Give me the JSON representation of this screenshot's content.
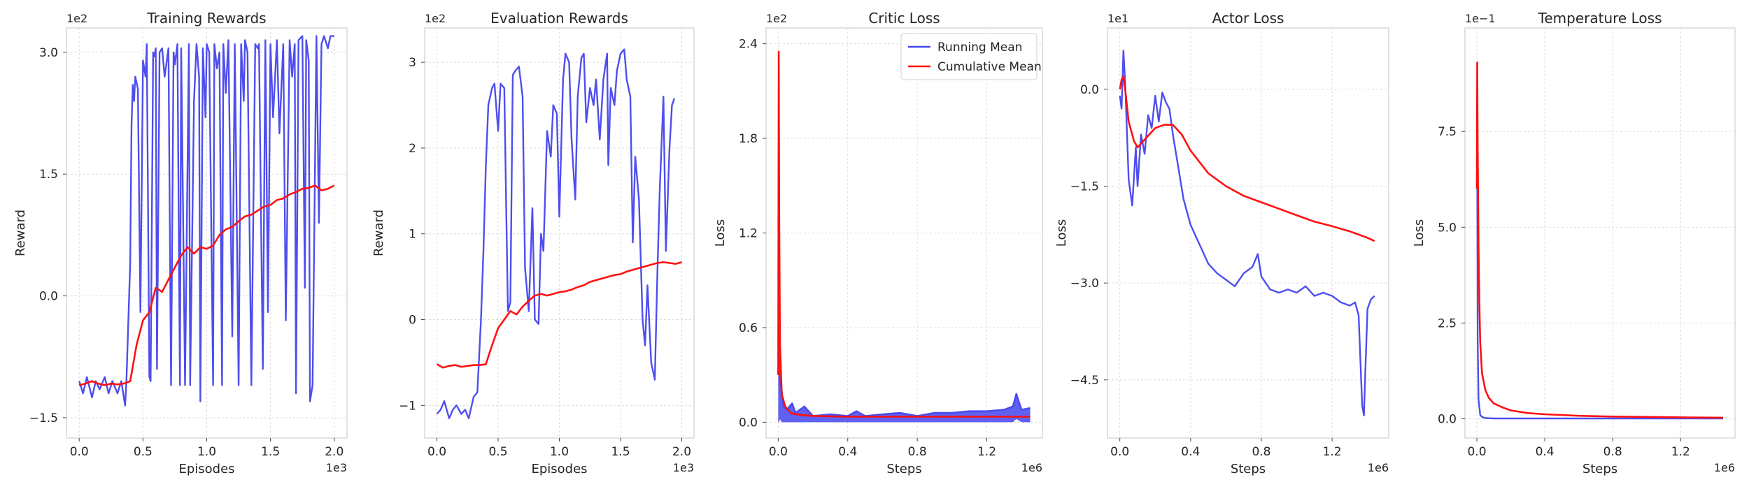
{
  "colors": {
    "running": "#4444ee",
    "cumulative": "#ff1010",
    "grid": "#dcdcdc",
    "spine": "#cfcfcf"
  },
  "chart_data": [
    {
      "type": "line",
      "title": "Training Rewards",
      "xlabel": "Episodes",
      "ylabel": "Reward",
      "x_offset_text": "1e3",
      "y_offset_text": "1e2",
      "xlim": [
        -0.1,
        2.1
      ],
      "ylim": [
        -1.75,
        3.3
      ],
      "xticks": [
        0.0,
        0.5,
        1.0,
        1.5,
        2.0
      ],
      "xtick_labels": [
        "0.0",
        "0.5",
        "1.0",
        "1.5",
        "2.0"
      ],
      "yticks": [
        -1.5,
        0.0,
        1.5,
        3.0
      ],
      "ytick_labels": [
        "−1.5",
        "0.0",
        "1.5",
        "3.0"
      ],
      "series": [
        {
          "role": "running",
          "x": [
            0.0,
            0.03,
            0.06,
            0.1,
            0.13,
            0.16,
            0.2,
            0.23,
            0.26,
            0.3,
            0.33,
            0.36,
            0.37,
            0.4,
            0.41,
            0.42,
            0.43,
            0.44,
            0.46,
            0.48,
            0.5,
            0.52,
            0.53,
            0.55,
            0.56,
            0.58,
            0.59,
            0.6,
            0.61,
            0.63,
            0.65,
            0.67,
            0.7,
            0.72,
            0.74,
            0.75,
            0.77,
            0.79,
            0.8,
            0.83,
            0.86,
            0.87,
            0.9,
            0.92,
            0.94,
            0.95,
            0.97,
            0.99,
            1.0,
            1.02,
            1.05,
            1.06,
            1.08,
            1.1,
            1.12,
            1.13,
            1.15,
            1.17,
            1.2,
            1.22,
            1.25,
            1.27,
            1.29,
            1.3,
            1.32,
            1.35,
            1.38,
            1.4,
            1.41,
            1.44,
            1.46,
            1.48,
            1.5,
            1.52,
            1.55,
            1.57,
            1.6,
            1.62,
            1.65,
            1.67,
            1.69,
            1.7,
            1.72,
            1.75,
            1.77,
            1.78,
            1.8,
            1.81,
            1.83,
            1.86,
            1.88,
            1.9,
            1.92,
            1.95,
            1.97,
            2.0
          ],
          "y": [
            -1.05,
            -1.2,
            -1.0,
            -1.25,
            -1.05,
            -1.15,
            -1.0,
            -1.2,
            -1.05,
            -1.2,
            -1.05,
            -1.35,
            -1.05,
            0.4,
            2.1,
            2.6,
            2.4,
            2.7,
            2.55,
            -0.2,
            2.9,
            2.7,
            3.1,
            -1.0,
            -1.05,
            3.0,
            2.95,
            3.05,
            -0.9,
            3.0,
            3.05,
            2.7,
            3.05,
            -1.1,
            3.0,
            2.85,
            3.1,
            -1.1,
            3.05,
            -1.1,
            3.1,
            -1.1,
            2.4,
            3.1,
            2.7,
            -1.3,
            3.05,
            2.2,
            3.1,
            3.0,
            -1.1,
            3.1,
            2.8,
            3.0,
            -1.1,
            3.1,
            2.5,
            3.15,
            -0.5,
            3.1,
            -1.1,
            3.1,
            2.4,
            3.15,
            3.0,
            -1.1,
            3.1,
            3.05,
            3.1,
            -0.9,
            3.15,
            -0.2,
            3.1,
            2.2,
            3.15,
            2.0,
            3.1,
            -0.3,
            3.15,
            2.7,
            3.1,
            -1.2,
            3.15,
            3.2,
            0.1,
            3.15,
            2.9,
            -1.3,
            -1.1,
            3.2,
            0.9,
            3.1,
            3.2,
            3.05,
            3.2,
            3.2
          ]
        },
        {
          "role": "cumulative",
          "x": [
            0.0,
            0.05,
            0.1,
            0.15,
            0.2,
            0.25,
            0.3,
            0.35,
            0.4,
            0.45,
            0.5,
            0.55,
            0.6,
            0.65,
            0.7,
            0.75,
            0.8,
            0.85,
            0.9,
            0.95,
            1.0,
            1.05,
            1.1,
            1.15,
            1.2,
            1.25,
            1.3,
            1.35,
            1.4,
            1.45,
            1.5,
            1.55,
            1.6,
            1.65,
            1.7,
            1.75,
            1.8,
            1.85,
            1.9,
            1.95,
            2.0
          ],
          "y": [
            -1.1,
            -1.08,
            -1.05,
            -1.08,
            -1.1,
            -1.08,
            -1.09,
            -1.08,
            -1.05,
            -0.6,
            -0.3,
            -0.2,
            0.1,
            0.05,
            0.2,
            0.35,
            0.5,
            0.6,
            0.52,
            0.6,
            0.58,
            0.62,
            0.75,
            0.82,
            0.85,
            0.92,
            0.98,
            1.0,
            1.05,
            1.1,
            1.12,
            1.18,
            1.2,
            1.25,
            1.28,
            1.32,
            1.33,
            1.36,
            1.3,
            1.32,
            1.36
          ]
        }
      ]
    },
    {
      "type": "line",
      "title": "Evaluation Rewards",
      "xlabel": "Episodes",
      "ylabel": "Reward",
      "x_offset_text": "1e3",
      "y_offset_text": "1e2",
      "xlim": [
        -0.1,
        2.1
      ],
      "ylim": [
        -1.38,
        3.4
      ],
      "xticks": [
        0.0,
        0.5,
        1.0,
        1.5,
        2.0
      ],
      "xtick_labels": [
        "0.0",
        "0.5",
        "1.0",
        "1.5",
        "2.0"
      ],
      "yticks": [
        -1,
        0,
        1,
        2,
        3
      ],
      "ytick_labels": [
        "−1",
        "0",
        "1",
        "2",
        "3"
      ],
      "series": [
        {
          "role": "running",
          "x": [
            0.0,
            0.03,
            0.06,
            0.1,
            0.13,
            0.16,
            0.2,
            0.23,
            0.26,
            0.3,
            0.33,
            0.36,
            0.38,
            0.4,
            0.42,
            0.45,
            0.47,
            0.5,
            0.52,
            0.55,
            0.58,
            0.6,
            0.62,
            0.64,
            0.67,
            0.7,
            0.72,
            0.75,
            0.78,
            0.8,
            0.83,
            0.85,
            0.87,
            0.9,
            0.93,
            0.95,
            0.98,
            1.0,
            1.03,
            1.05,
            1.08,
            1.1,
            1.13,
            1.15,
            1.18,
            1.2,
            1.22,
            1.25,
            1.28,
            1.3,
            1.33,
            1.36,
            1.39,
            1.4,
            1.42,
            1.45,
            1.47,
            1.5,
            1.53,
            1.55,
            1.58,
            1.6,
            1.62,
            1.65,
            1.68,
            1.7,
            1.72,
            1.75,
            1.78,
            1.8,
            1.82,
            1.85,
            1.87,
            1.9,
            1.92,
            1.94
          ],
          "y": [
            -1.1,
            -1.05,
            -0.95,
            -1.15,
            -1.05,
            -1.0,
            -1.1,
            -1.05,
            -1.15,
            -0.9,
            -0.85,
            0.0,
            0.8,
            1.8,
            2.5,
            2.7,
            2.75,
            2.2,
            2.75,
            2.7,
            0.1,
            0.2,
            2.85,
            2.9,
            2.95,
            2.6,
            0.6,
            0.1,
            1.3,
            0.0,
            -0.05,
            1.0,
            0.8,
            2.2,
            1.9,
            2.5,
            2.4,
            1.2,
            2.8,
            3.1,
            3.0,
            2.1,
            1.4,
            2.6,
            3.05,
            3.1,
            2.3,
            2.7,
            2.5,
            2.8,
            2.1,
            2.8,
            3.1,
            1.8,
            2.7,
            2.5,
            2.9,
            3.1,
            3.15,
            2.8,
            2.6,
            0.9,
            1.9,
            1.4,
            0.0,
            -0.3,
            0.4,
            -0.5,
            -0.7,
            0.5,
            1.5,
            2.6,
            0.8,
            2.0,
            2.5,
            2.58
          ]
        },
        {
          "role": "cumulative",
          "x": [
            0.0,
            0.05,
            0.1,
            0.15,
            0.2,
            0.25,
            0.3,
            0.35,
            0.4,
            0.45,
            0.5,
            0.55,
            0.6,
            0.65,
            0.7,
            0.75,
            0.8,
            0.85,
            0.9,
            0.95,
            1.0,
            1.05,
            1.1,
            1.15,
            1.2,
            1.25,
            1.3,
            1.35,
            1.4,
            1.45,
            1.5,
            1.55,
            1.6,
            1.65,
            1.7,
            1.75,
            1.8,
            1.85,
            1.9,
            1.95,
            2.0
          ],
          "y": [
            -0.52,
            -0.56,
            -0.54,
            -0.53,
            -0.55,
            -0.54,
            -0.53,
            -0.53,
            -0.52,
            -0.3,
            -0.1,
            0.0,
            0.1,
            0.06,
            0.15,
            0.22,
            0.28,
            0.3,
            0.28,
            0.3,
            0.32,
            0.33,
            0.35,
            0.38,
            0.4,
            0.44,
            0.46,
            0.48,
            0.5,
            0.52,
            0.53,
            0.56,
            0.58,
            0.6,
            0.62,
            0.64,
            0.66,
            0.67,
            0.66,
            0.65,
            0.67
          ]
        }
      ]
    },
    {
      "type": "line",
      "title": "Critic Loss",
      "xlabel": "Steps",
      "ylabel": "Loss",
      "x_offset_text": "1e6",
      "y_offset_text": "1e2",
      "xlim": [
        -0.07,
        1.52
      ],
      "ylim": [
        -0.1,
        2.5
      ],
      "xticks": [
        0.0,
        0.4,
        0.8,
        1.2
      ],
      "xtick_labels": [
        "0.0",
        "0.4",
        "0.8",
        "1.2"
      ],
      "yticks": [
        0.0,
        0.6,
        1.2,
        1.8,
        2.4
      ],
      "ytick_labels": [
        "0.0",
        "0.6",
        "1.2",
        "1.8",
        "2.4"
      ],
      "legend": {
        "position": "top-right",
        "entries": [
          "Running Mean",
          "Cumulative Mean"
        ]
      },
      "series": [
        {
          "role": "running",
          "name": "Running Mean",
          "x": [
            0.0,
            0.005,
            0.01,
            0.02,
            0.03,
            0.05,
            0.08,
            0.1,
            0.15,
            0.2,
            0.3,
            0.4,
            0.45,
            0.5,
            0.6,
            0.7,
            0.8,
            0.9,
            1.0,
            1.1,
            1.2,
            1.3,
            1.35,
            1.37,
            1.4,
            1.45
          ],
          "y": [
            0.3,
            0.6,
            0.25,
            0.2,
            0.1,
            0.08,
            0.12,
            0.06,
            0.1,
            0.04,
            0.05,
            0.04,
            0.07,
            0.04,
            0.05,
            0.06,
            0.04,
            0.06,
            0.06,
            0.07,
            0.07,
            0.08,
            0.1,
            0.18,
            0.08,
            0.09
          ],
          "band_lower": [
            0.0,
            0.0,
            0.02,
            0.0,
            0.0,
            0.0,
            0.0,
            0.0,
            0.0,
            0.0,
            0.0,
            0.0,
            0.0,
            0.0,
            0.0,
            0.0,
            0.0,
            0.0,
            0.0,
            0.0,
            0.0,
            0.0,
            0.0,
            0.02,
            0.0,
            0.0
          ]
        },
        {
          "role": "cumulative",
          "name": "Cumulative Mean",
          "x": [
            0.0,
            0.003,
            0.006,
            0.01,
            0.02,
            0.04,
            0.07,
            0.1,
            0.2,
            0.4,
            0.6,
            0.8,
            1.0,
            1.2,
            1.45
          ],
          "y": [
            0.3,
            2.35,
            1.2,
            0.5,
            0.18,
            0.1,
            0.06,
            0.05,
            0.04,
            0.035,
            0.035,
            0.035,
            0.035,
            0.035,
            0.035
          ]
        }
      ]
    },
    {
      "type": "line",
      "title": "Actor Loss",
      "xlabel": "Steps",
      "ylabel": "Loss",
      "x_offset_text": "1e6",
      "y_offset_text": "1e1",
      "xlim": [
        -0.07,
        1.52
      ],
      "ylim": [
        -5.4,
        0.95
      ],
      "xticks": [
        0.0,
        0.4,
        0.8,
        1.2
      ],
      "xtick_labels": [
        "0.0",
        "0.4",
        "0.8",
        "1.2"
      ],
      "yticks": [
        -4.5,
        -3.0,
        -1.5,
        0.0
      ],
      "ytick_labels": [
        "−4.5",
        "−3.0",
        "−1.5",
        "0.0"
      ],
      "series": [
        {
          "role": "running",
          "x": [
            0.0,
            0.01,
            0.02,
            0.03,
            0.05,
            0.07,
            0.09,
            0.1,
            0.12,
            0.14,
            0.16,
            0.18,
            0.2,
            0.22,
            0.24,
            0.26,
            0.28,
            0.3,
            0.33,
            0.36,
            0.4,
            0.45,
            0.5,
            0.55,
            0.6,
            0.65,
            0.7,
            0.75,
            0.78,
            0.8,
            0.85,
            0.9,
            0.95,
            1.0,
            1.05,
            1.1,
            1.15,
            1.2,
            1.25,
            1.3,
            1.33,
            1.35,
            1.37,
            1.38,
            1.39,
            1.4,
            1.42,
            1.44
          ],
          "y": [
            -0.1,
            -0.3,
            0.6,
            0.1,
            -1.4,
            -1.8,
            -0.9,
            -1.5,
            -0.7,
            -1.0,
            -0.4,
            -0.6,
            -0.1,
            -0.5,
            -0.05,
            -0.2,
            -0.3,
            -0.7,
            -1.2,
            -1.7,
            -2.1,
            -2.4,
            -2.7,
            -2.85,
            -2.95,
            -3.05,
            -2.85,
            -2.75,
            -2.55,
            -2.9,
            -3.1,
            -3.15,
            -3.1,
            -3.15,
            -3.05,
            -3.2,
            -3.15,
            -3.2,
            -3.3,
            -3.35,
            -3.3,
            -3.5,
            -4.9,
            -5.05,
            -4.2,
            -3.4,
            -3.25,
            -3.2
          ]
        },
        {
          "role": "cumulative",
          "x": [
            0.0,
            0.01,
            0.02,
            0.03,
            0.05,
            0.08,
            0.1,
            0.15,
            0.2,
            0.25,
            0.3,
            0.35,
            0.4,
            0.5,
            0.6,
            0.7,
            0.8,
            0.9,
            1.0,
            1.1,
            1.2,
            1.3,
            1.4,
            1.44
          ],
          "y": [
            0.0,
            0.15,
            0.2,
            0.0,
            -0.5,
            -0.8,
            -0.9,
            -0.75,
            -0.6,
            -0.55,
            -0.55,
            -0.7,
            -0.95,
            -1.3,
            -1.5,
            -1.65,
            -1.75,
            -1.85,
            -1.95,
            -2.05,
            -2.12,
            -2.2,
            -2.3,
            -2.35
          ]
        }
      ]
    },
    {
      "type": "line",
      "title": "Temperature Loss",
      "xlabel": "Steps",
      "ylabel": "Loss",
      "x_offset_text": "1e6",
      "y_offset_text": "1e−1",
      "xlim": [
        -0.07,
        1.52
      ],
      "ylim": [
        -0.5,
        10.2
      ],
      "xticks": [
        0.0,
        0.4,
        0.8,
        1.2
      ],
      "xtick_labels": [
        "0.0",
        "0.4",
        "0.8",
        "1.2"
      ],
      "yticks": [
        0.0,
        2.5,
        5.0,
        7.5
      ],
      "ytick_labels": [
        "0.0",
        "2.5",
        "5.0",
        "7.5"
      ],
      "series": [
        {
          "role": "running",
          "x": [
            0.0,
            0.002,
            0.005,
            0.01,
            0.02,
            0.03,
            0.05,
            0.1,
            0.3,
            0.6,
            0.9,
            1.2,
            1.45
          ],
          "y": [
            6.0,
            7.0,
            2.0,
            0.5,
            0.1,
            0.05,
            0.02,
            0.01,
            0.01,
            0.01,
            0.01,
            0.01,
            0.01
          ]
        },
        {
          "role": "cumulative",
          "x": [
            0.0,
            0.002,
            0.005,
            0.01,
            0.015,
            0.02,
            0.03,
            0.05,
            0.07,
            0.1,
            0.15,
            0.2,
            0.3,
            0.4,
            0.6,
            0.8,
            1.0,
            1.2,
            1.45
          ],
          "y": [
            6.0,
            9.3,
            7.0,
            4.5,
            3.0,
            2.0,
            1.2,
            0.75,
            0.55,
            0.4,
            0.3,
            0.22,
            0.15,
            0.12,
            0.08,
            0.06,
            0.05,
            0.04,
            0.03
          ]
        }
      ]
    }
  ]
}
